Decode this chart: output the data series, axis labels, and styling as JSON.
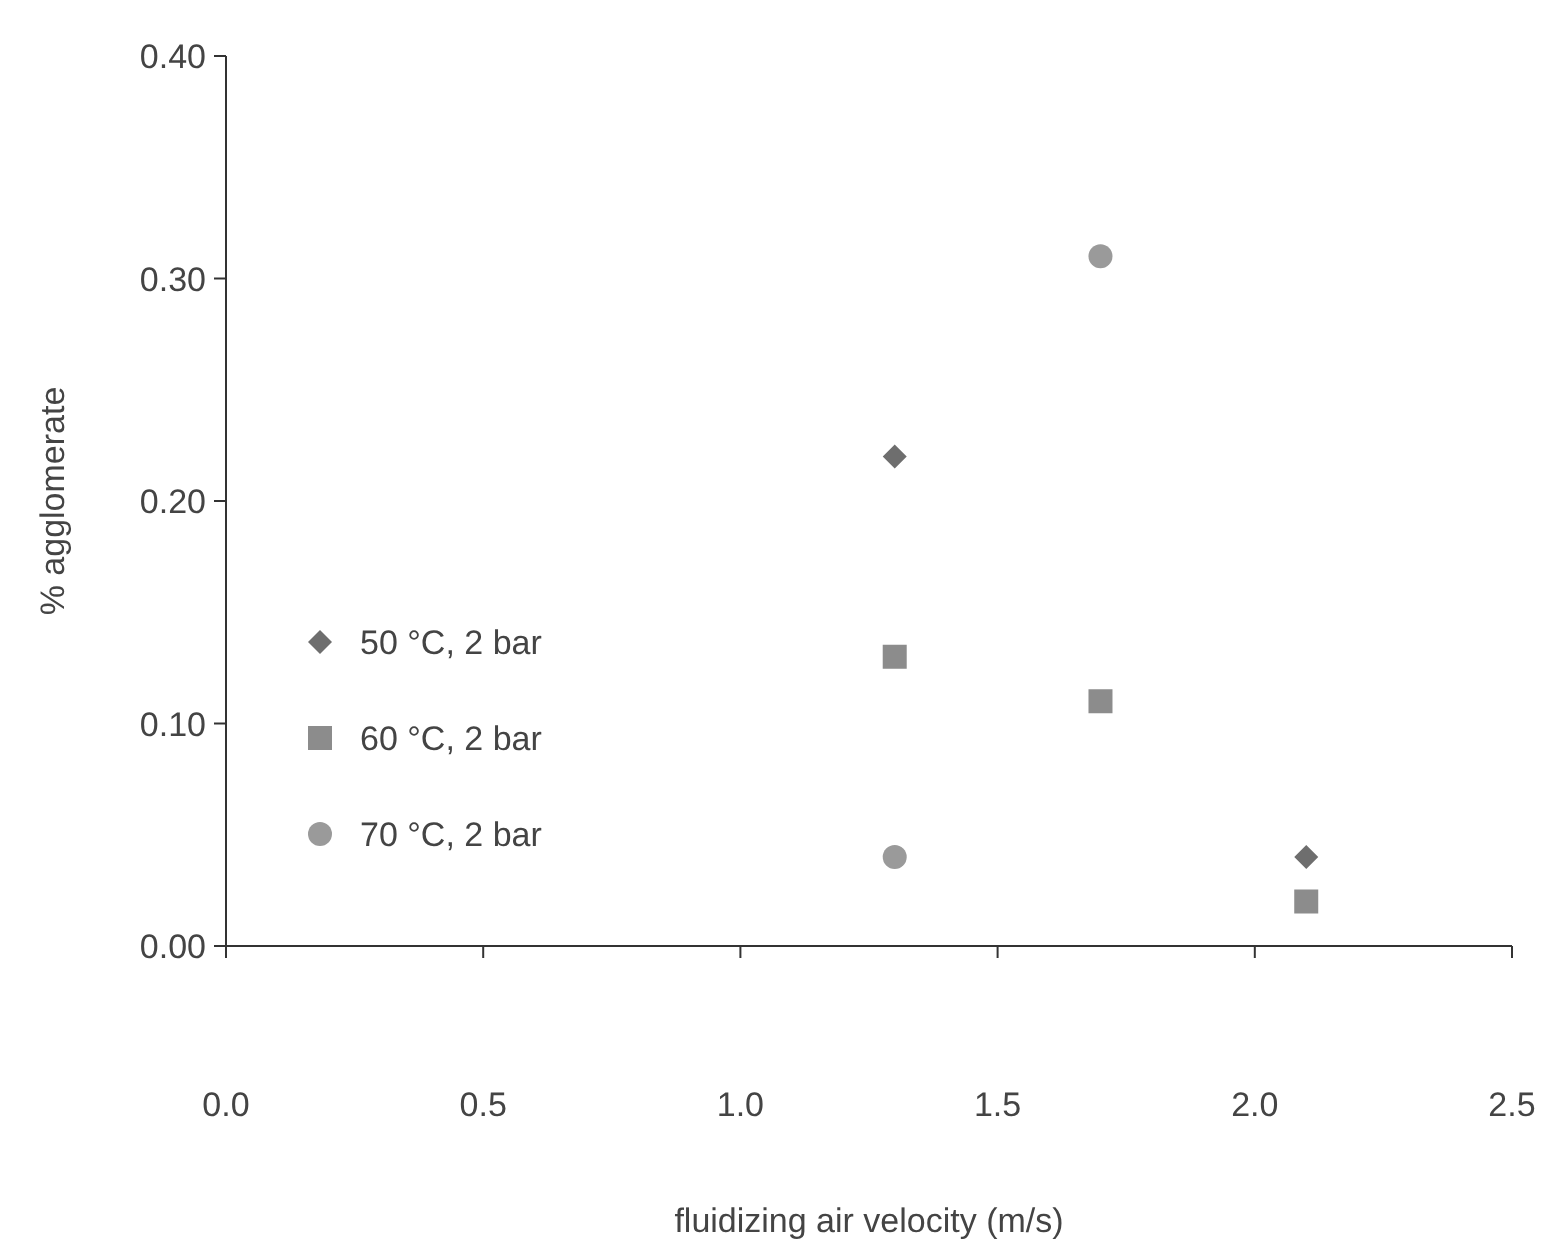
{
  "chart_data": {
    "type": "scatter",
    "xlabel": "fluidizing air velocity (m/s)",
    "ylabel": "% agglomerate",
    "xlim": [
      0,
      2.5
    ],
    "xticks": [
      {
        "value": 0,
        "label": "0.0"
      },
      0.5,
      {
        "value": 1,
        "label": "1.0"
      },
      1.5,
      {
        "value": 2,
        "label": "2.0"
      },
      2.5
    ],
    "ylim": [
      0,
      0.4
    ],
    "yticks": [
      {
        "value": 0,
        "label": "0.00"
      },
      {
        "value": 0.1,
        "label": "0.10"
      },
      {
        "value": 0.2,
        "label": "0.20"
      },
      {
        "value": 0.3,
        "label": "0.30"
      },
      {
        "value": 0.4,
        "label": "0.40"
      }
    ],
    "grid": false,
    "legend": "left",
    "series": [
      {
        "name": "50 °C, 2 bar",
        "color": "#6e6e6e",
        "marker": "diamond",
        "x": [
          1.3,
          2.1
        ],
        "values": [
          0.22,
          0.04
        ]
      },
      {
        "name": "60 °C, 2 bar",
        "color": "#8c8c8c",
        "marker": "square",
        "x": [
          1.3,
          1.7,
          2.1
        ],
        "values": [
          0.13,
          0.11,
          0.02
        ]
      },
      {
        "name": "70 °C, 2 bar",
        "color": "#9a9a9a",
        "marker": "circle",
        "x": [
          1.7,
          1.3
        ],
        "values": [
          0.31,
          0.04
        ]
      }
    ]
  }
}
